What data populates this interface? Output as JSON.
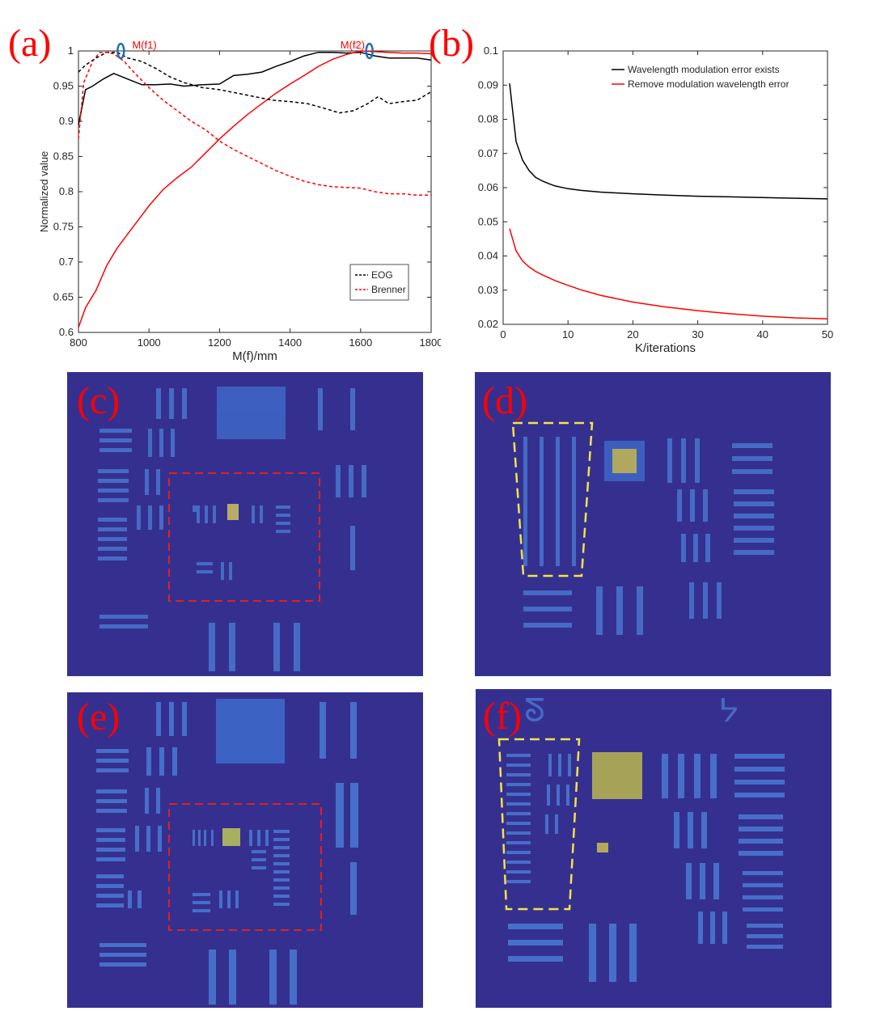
{
  "panels": {
    "a": "(a)",
    "b": "(b)",
    "c": "(c)",
    "d": "(d)",
    "e": "(e)",
    "f": "(f)"
  },
  "colors": {
    "image_bg": "#35308f",
    "red": "#ff0000",
    "black": "#000000",
    "marker": "#1f6fb5",
    "dash_box": "#e02020",
    "yellow_box": "#f2e34a"
  },
  "chart_data": [
    {
      "id": "a",
      "type": "line",
      "xlabel": "M(f)/mm",
      "ylabel": "Normalized value",
      "xlim": [
        800,
        1800
      ],
      "ylim": [
        0.6,
        1
      ],
      "xticks": [
        800,
        1000,
        1200,
        1400,
        1600,
        1800
      ],
      "yticks": [
        0.6,
        0.65,
        0.7,
        0.75,
        0.8,
        0.85,
        0.9,
        0.95,
        1
      ],
      "legend_position": "bottom-right",
      "annotations": [
        {
          "text": "M(f1)",
          "x": 920,
          "y": 1.0
        },
        {
          "text": "M(f2)",
          "x": 1625,
          "y": 1.0
        }
      ],
      "series": [
        {
          "style": "solid",
          "color": "#000000",
          "x": [
            800,
            820,
            840,
            870,
            900,
            940,
            980,
            1020,
            1060,
            1100,
            1150,
            1200,
            1240,
            1280,
            1320,
            1360,
            1400,
            1440,
            1480,
            1520,
            1560,
            1600,
            1640,
            1680,
            1720,
            1760,
            1800
          ],
          "y": [
            0.895,
            0.945,
            0.95,
            0.96,
            0.968,
            0.96,
            0.952,
            0.952,
            0.953,
            0.95,
            0.952,
            0.953,
            0.965,
            0.967,
            0.97,
            0.978,
            0.985,
            0.993,
            0.998,
            0.998,
            0.997,
            0.998,
            0.993,
            0.99,
            0.99,
            0.99,
            0.987
          ]
        },
        {
          "style": "solid",
          "color": "#ff0000",
          "x": [
            800,
            820,
            850,
            880,
            910,
            940,
            970,
            1000,
            1040,
            1080,
            1120,
            1160,
            1200,
            1240,
            1280,
            1320,
            1360,
            1400,
            1440,
            1480,
            1520,
            1560,
            1600,
            1640,
            1680,
            1720,
            1760,
            1800
          ],
          "y": [
            0.607,
            0.635,
            0.66,
            0.695,
            0.72,
            0.74,
            0.76,
            0.78,
            0.803,
            0.82,
            0.835,
            0.855,
            0.875,
            0.893,
            0.91,
            0.925,
            0.94,
            0.953,
            0.965,
            0.978,
            0.988,
            0.995,
            1.0,
            0.999,
            0.998,
            0.997,
            0.997,
            0.996
          ]
        },
        {
          "name": "EOG",
          "style": "dashed",
          "color": "#000000",
          "x": [
            800,
            820,
            850,
            880,
            910,
            940,
            980,
            1020,
            1060,
            1100,
            1150,
            1200,
            1250,
            1300,
            1350,
            1400,
            1450,
            1500,
            1540,
            1580,
            1620,
            1650,
            1680,
            1720,
            1760,
            1800
          ],
          "y": [
            0.97,
            0.98,
            0.99,
            0.998,
            0.998,
            0.99,
            0.985,
            0.975,
            0.963,
            0.955,
            0.948,
            0.945,
            0.94,
            0.935,
            0.93,
            0.928,
            0.925,
            0.918,
            0.912,
            0.915,
            0.925,
            0.935,
            0.925,
            0.928,
            0.93,
            0.942
          ]
        },
        {
          "name": "Brenner",
          "style": "dashed",
          "color": "#ff0000",
          "x": [
            800,
            815,
            840,
            860,
            880,
            900,
            930,
            960,
            1000,
            1040,
            1080,
            1120,
            1160,
            1200,
            1240,
            1280,
            1320,
            1360,
            1400,
            1440,
            1480,
            1520,
            1560,
            1600,
            1640,
            1680,
            1720,
            1760,
            1800
          ],
          "y": [
            0.875,
            0.955,
            0.985,
            0.998,
            0.998,
            0.996,
            0.985,
            0.968,
            0.948,
            0.93,
            0.915,
            0.9,
            0.888,
            0.872,
            0.86,
            0.85,
            0.84,
            0.83,
            0.822,
            0.815,
            0.81,
            0.807,
            0.806,
            0.805,
            0.8,
            0.797,
            0.797,
            0.795,
            0.795
          ]
        }
      ]
    },
    {
      "id": "b",
      "type": "line",
      "xlabel": "K/iterations",
      "ylabel": "",
      "xlim": [
        0,
        50
      ],
      "ylim": [
        0.02,
        0.1
      ],
      "xticks": [
        0,
        10,
        20,
        30,
        40,
        50
      ],
      "yticks": [
        0.02,
        0.03,
        0.04,
        0.05,
        0.06,
        0.07,
        0.08,
        0.09,
        0.1
      ],
      "legend_position": "top-right",
      "series": [
        {
          "name": "Wavelength modulation error exists",
          "color": "#000000",
          "x": [
            1,
            2,
            3,
            4,
            5,
            6,
            7,
            8,
            10,
            12,
            15,
            20,
            25,
            30,
            35,
            40,
            45,
            50
          ],
          "y": [
            0.0905,
            0.0735,
            0.068,
            0.065,
            0.063,
            0.062,
            0.0612,
            0.0605,
            0.0597,
            0.0592,
            0.0587,
            0.0582,
            0.0578,
            0.0575,
            0.0573,
            0.0571,
            0.0569,
            0.0567
          ]
        },
        {
          "name": "Remove modulation wavelength error",
          "color": "#ff0000",
          "x": [
            1,
            2,
            3,
            4,
            5,
            6,
            8,
            10,
            12,
            15,
            20,
            25,
            30,
            35,
            40,
            45,
            50
          ],
          "y": [
            0.048,
            0.0415,
            0.0385,
            0.0368,
            0.0355,
            0.0345,
            0.0328,
            0.0314,
            0.0301,
            0.0285,
            0.0265,
            0.0251,
            0.024,
            0.0231,
            0.0224,
            0.0219,
            0.0216
          ]
        }
      ]
    }
  ]
}
